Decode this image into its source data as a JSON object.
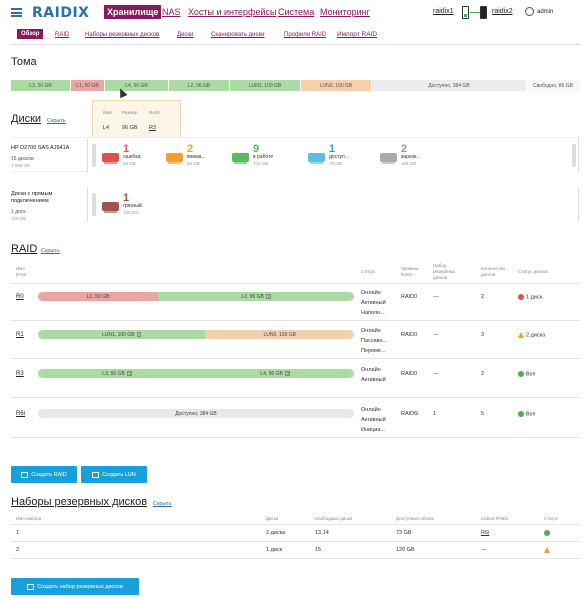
{
  "header": {
    "logo": "RAIDIX",
    "nav": [
      "Хранилище",
      "NAS",
      "Хосты и интерфейсы",
      "Система",
      "Мониторинг"
    ],
    "node1": "raidix1",
    "node2": "raidix2",
    "user": "admin"
  },
  "subnav": [
    "Обзор",
    "RAID",
    "Наборы резервных дисков",
    "Диски",
    "Сканировать диски",
    "Профили RAID",
    "Импорт RAID"
  ],
  "volumes": {
    "title": "Тома",
    "segments": [
      "L3, 50 GB",
      "L1, 50 GB",
      "L4, 96 GB",
      "L2, 96 GB",
      "LUN1, 100 GB",
      "LUN0, 100 GB",
      "Доступно, 384 GB",
      "Свободно, 86 GB"
    ],
    "tooltip": {
      "headers": [
        "Имя",
        "Размер",
        "RAID"
      ],
      "values": [
        "L4",
        "96 GB",
        "R3"
      ]
    }
  },
  "disks": {
    "title": "Диски",
    "hide": "Скрыть",
    "enclosure": {
      "name": "HP D2700 SAS AJ941A",
      "count": "15 дисков",
      "size": "1 095 GB",
      "groups": [
        {
          "count": "1",
          "label": "ошибка",
          "size": "58 GB",
          "color": "#d9534f"
        },
        {
          "count": "2",
          "label": "внима...",
          "size": "96 GB",
          "color": "#f0a030"
        },
        {
          "count": "9",
          "label": "в работе",
          "size": "704 GB",
          "color": "#5cb85c"
        },
        {
          "count": "1",
          "label": "доступ...",
          "size": "70 GB",
          "color": "#5bc0de"
        },
        {
          "count": "2",
          "label": "зарезе...",
          "size": "166 GB",
          "color": "#aaaaaa"
        }
      ]
    },
    "direct": {
      "name1": "Диски с прямым",
      "name2": "подключением",
      "count": "1 диск",
      "size": "120 GB",
      "group": {
        "count": "1",
        "label": "грязный",
        "size": "120 GB",
        "color": "#a0524d"
      }
    }
  },
  "raid": {
    "title": "RAID",
    "hide": "Скрыть",
    "headers": {
      "name": [
        "Имя",
        "RAID"
      ],
      "status": "Статус",
      "level": [
        "Уровень",
        "RAID"
      ],
      "spare": [
        "Набор",
        "резервных",
        "дисков"
      ],
      "disks": [
        "Количество",
        "дисков"
      ],
      "disk_status": "Статус дисков"
    },
    "rows": [
      {
        "name": "R0",
        "segments": [
          {
            "label": "L1, 50 GB",
            "color": "#eaa6a0",
            "w": 0.38
          },
          {
            "label": "L2, 96 GB",
            "tag": "R",
            "color": "#a9dba3",
            "w": 0.62
          }
        ],
        "status": [
          "Онлайн",
          "Активный",
          "Наполн..."
        ],
        "level": "RAID0",
        "spare": "—",
        "disks": "2",
        "disk_status": "1 диск",
        "disk_status_type": "error"
      },
      {
        "name": "R1",
        "segments": [
          {
            "label": "LUN1, 100 GB",
            "tag": "R",
            "color": "#a9dba3",
            "w": 0.53
          },
          {
            "label": "LUN0, 100 GB",
            "color": "#f8cfab",
            "w": 0.47
          }
        ],
        "status": [
          "Онлайн",
          "Пассивн...",
          "Переме..."
        ],
        "level": "RAID0",
        "spare": "—",
        "disks": "3",
        "disk_status": "2 диска",
        "disk_status_type": "warn"
      },
      {
        "name": "R3",
        "segments": [
          {
            "label": "L3, 50 GB",
            "tag": "R",
            "color": "#a9dba3",
            "w": 0.5
          },
          {
            "label": "L4, 96 GB",
            "tag": "R",
            "color": "#a9dba3",
            "w": 0.5
          }
        ],
        "status": [
          "Онлайн",
          "Активный"
        ],
        "level": "RAID0",
        "spare": "—",
        "disks": "2",
        "disk_status": "Все",
        "disk_status_type": "ok"
      },
      {
        "name": "R6i",
        "segments": [
          {
            "label": "Доступно, 384 GB",
            "color": "#e8e8e8",
            "w": 1.0
          }
        ],
        "status": [
          "Онлайн",
          "Активный",
          "Инициа..."
        ],
        "level": "RAID6i",
        "spare": "1",
        "disks": "5",
        "disk_status": "Все",
        "disk_status_type": "ok"
      }
    ],
    "buttons": [
      "Создать RAID",
      "Создать LUN"
    ]
  },
  "spares": {
    "title": "Наборы резервных дисков",
    "hide": "Скрыть",
    "headers": [
      "Имя набора",
      "Диски",
      "Свободные диски",
      "Доступный объем",
      "Linked RAIDs",
      "Статус"
    ],
    "rows": [
      {
        "name": "1",
        "disks": "2 диска",
        "free": "13,14",
        "volume": "73 GB",
        "linked": "R6i",
        "status": "ok"
      },
      {
        "name": "2",
        "disks": "1 диск",
        "free": "15",
        "volume": "120 GB",
        "linked": "—",
        "status": "warn"
      }
    ],
    "button": "Создать набор резервных дисков"
  },
  "colors": {
    "brand": "#8b1a5c",
    "logo": "#2a6fb0",
    "button": "#1aa0d8",
    "ok": "#4caf50",
    "warn": "#f0a030",
    "error": "#d9534f"
  }
}
